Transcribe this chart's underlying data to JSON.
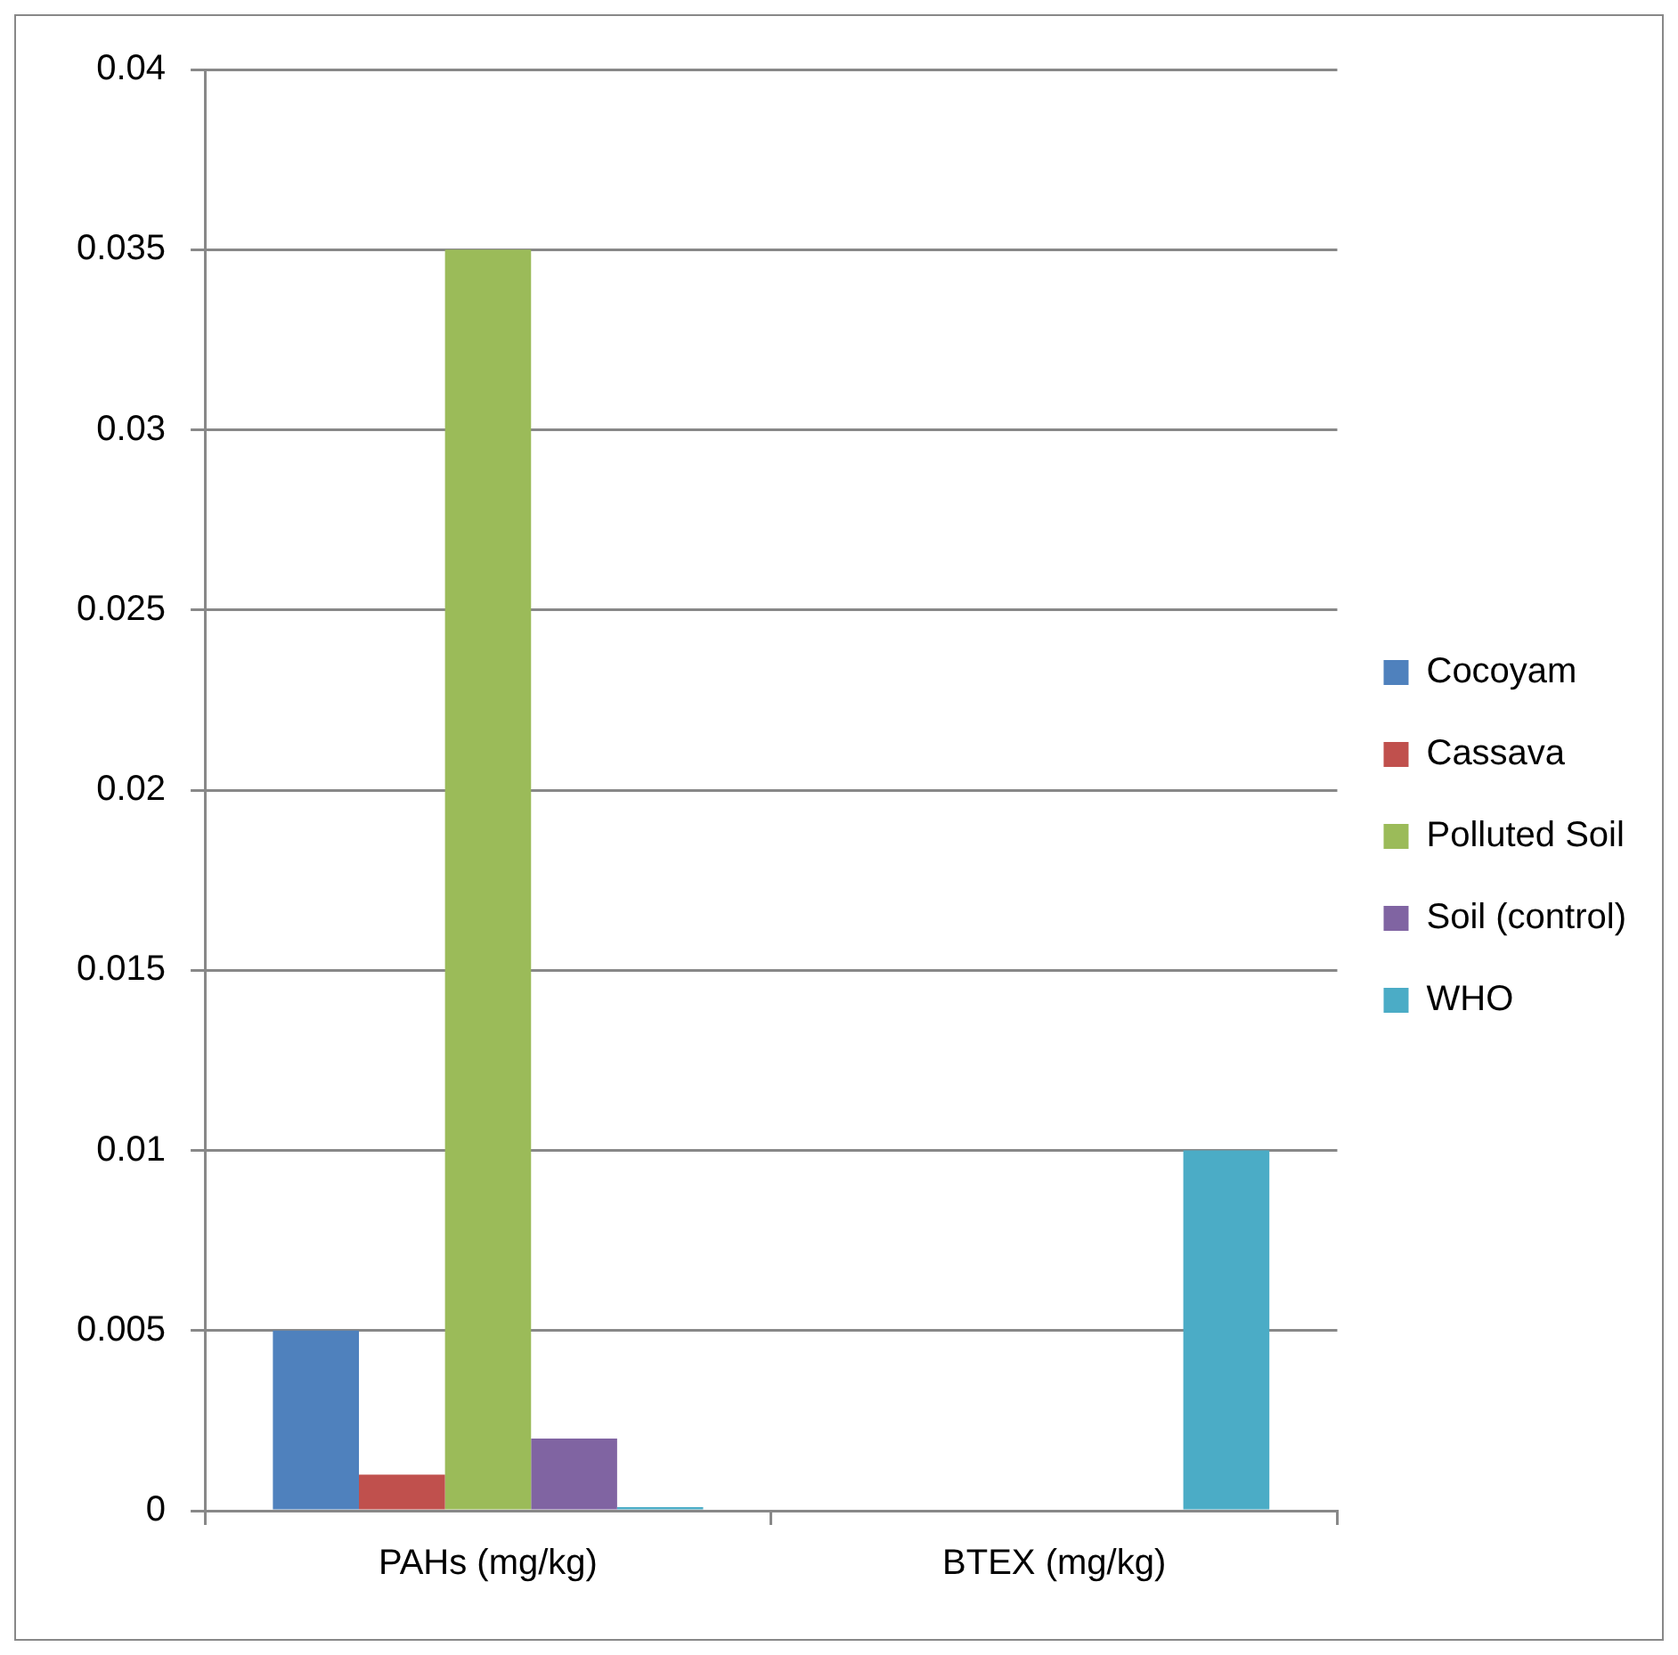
{
  "chart_data": {
    "type": "bar",
    "categories": [
      "PAHs (mg/kg)",
      "BTEX (mg/kg)"
    ],
    "series": [
      {
        "name": "Cocoyam",
        "color": "#4f81bd",
        "values": [
          0.005,
          0
        ]
      },
      {
        "name": "Cassava",
        "color": "#c0504d",
        "values": [
          0.001,
          0
        ]
      },
      {
        "name": "Polluted Soil",
        "color": "#9bbb59",
        "values": [
          0.035,
          0
        ]
      },
      {
        "name": "Soil (control)",
        "color": "#8064a2",
        "values": [
          0.002,
          0
        ]
      },
      {
        "name": "WHO",
        "color": "#4bacc6",
        "values": [
          0.0001,
          0.01
        ]
      }
    ],
    "ylim": [
      0,
      0.04
    ],
    "yticks": [
      0,
      0.005,
      0.01,
      0.015,
      0.02,
      0.025,
      0.03,
      0.035,
      0.04
    ],
    "grid": "y",
    "legend": "right"
  }
}
